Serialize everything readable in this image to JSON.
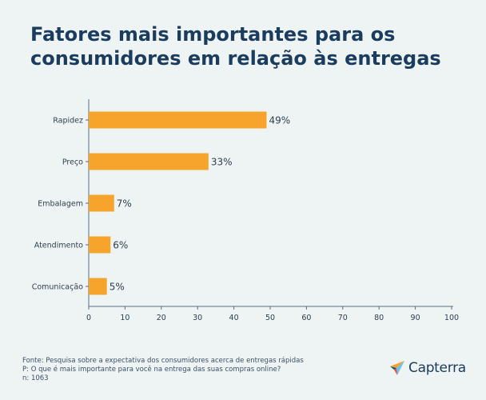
{
  "title": "Fatores mais importantes para os consumidores em relação às entregas",
  "footer": {
    "source": "Fonte: Pesquisa sobre a expectativa dos consumidores acerca de entregas rápidas",
    "question": "P: O que é mais importante para você na entrega das suas compras online?",
    "sample": "n: 1063"
  },
  "brand": {
    "name": "Capterra",
    "icon": "capterra-logo-icon"
  },
  "colors": {
    "bar": "#f7a42d",
    "title": "#1a3c5e",
    "background": "#eef3f3",
    "axis": "#5a6e80"
  },
  "chart_data": {
    "type": "bar",
    "orientation": "horizontal",
    "categories": [
      "Rapidez",
      "Preço",
      "Embalagem",
      "Atendimento",
      "Comunicação"
    ],
    "values": [
      49,
      33,
      7,
      6,
      5
    ],
    "value_labels": [
      "49%",
      "33%",
      "7%",
      "6%",
      "5%"
    ],
    "xlim": [
      0,
      100
    ],
    "xticks": [
      0,
      10,
      20,
      30,
      40,
      50,
      60,
      70,
      80,
      90,
      100
    ],
    "grid": false,
    "legend": "none"
  }
}
